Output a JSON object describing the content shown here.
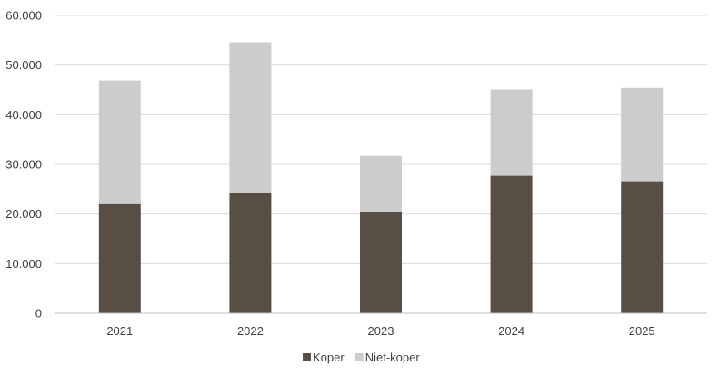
{
  "chart_data": {
    "type": "bar",
    "stacked": true,
    "title": "",
    "xlabel": "",
    "ylabel": "",
    "categories": [
      "2021",
      "2022",
      "2023",
      "2024",
      "2025"
    ],
    "series": [
      {
        "name": "Koper",
        "color": "#574f44",
        "values": [
          22000,
          24300,
          20500,
          27700,
          26600
        ]
      },
      {
        "name": "Niet-koper",
        "color": "#cccccc",
        "values": [
          24900,
          30300,
          11200,
          17400,
          18800
        ]
      }
    ],
    "ylim": [
      0,
      60000
    ],
    "yticks": [
      "0",
      "10.000",
      "20.000",
      "30.000",
      "40.000",
      "50.000",
      "60.000"
    ],
    "grid": true,
    "legend_position": "bottom"
  }
}
